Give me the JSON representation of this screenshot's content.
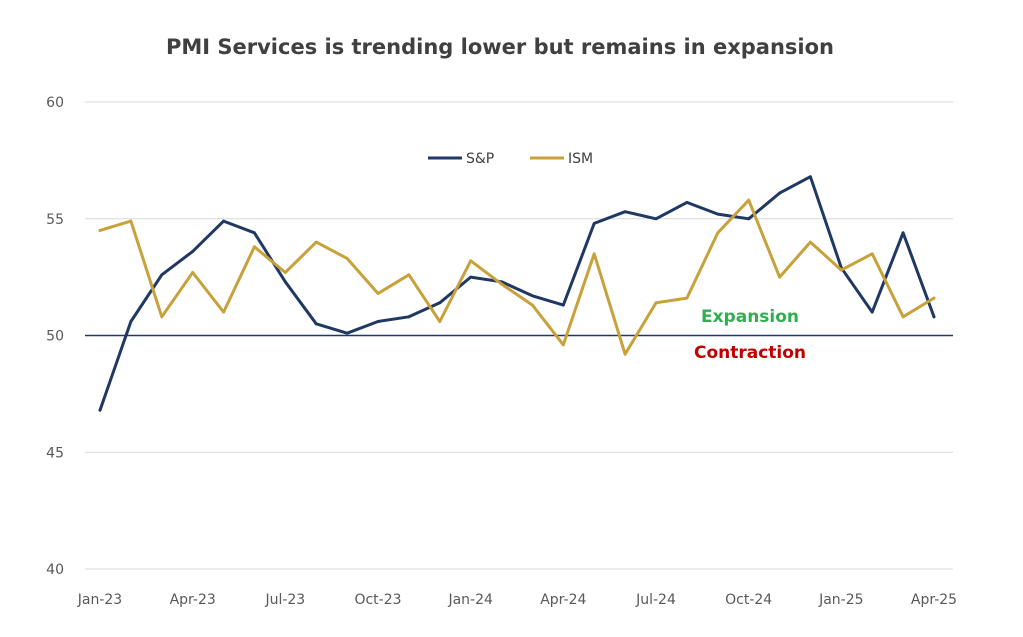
{
  "chart_data": {
    "type": "line",
    "title": "PMI Services is trending lower but remains in expansion",
    "xlabel": "",
    "ylabel": "",
    "ylim": [
      40,
      60
    ],
    "yticks": [
      40,
      45,
      50,
      55,
      60
    ],
    "x": [
      "Jan-23",
      "Feb-23",
      "Mar-23",
      "Apr-23",
      "May-23",
      "Jun-23",
      "Jul-23",
      "Aug-23",
      "Sep-23",
      "Oct-23",
      "Nov-23",
      "Dec-23",
      "Jan-24",
      "Feb-24",
      "Mar-24",
      "Apr-24",
      "May-24",
      "Jun-24",
      "Jul-24",
      "Aug-24",
      "Sep-24",
      "Oct-24",
      "Nov-24",
      "Dec-24",
      "Jan-25",
      "Feb-25",
      "Mar-25",
      "Apr-25"
    ],
    "xtick_labels": [
      "Jan-23",
      "Apr-23",
      "Jul-23",
      "Oct-23",
      "Jan-24",
      "Apr-24",
      "Jul-24",
      "Oct-24",
      "Jan-25",
      "Apr-25"
    ],
    "series": [
      {
        "name": "S&P",
        "color": "#1f3864",
        "values": [
          46.8,
          50.6,
          52.6,
          53.6,
          54.9,
          54.4,
          52.3,
          50.5,
          50.1,
          50.6,
          50.8,
          51.4,
          52.5,
          52.3,
          51.7,
          51.3,
          54.8,
          55.3,
          55.0,
          55.7,
          55.2,
          55.0,
          56.1,
          56.8,
          52.9,
          51.0,
          54.4,
          50.8
        ]
      },
      {
        "name": "ISM",
        "color": "#c9a13a",
        "values": [
          54.5,
          54.9,
          50.8,
          52.7,
          51.0,
          53.8,
          52.7,
          54.0,
          53.3,
          51.8,
          52.6,
          50.6,
          53.2,
          52.2,
          51.3,
          49.6,
          53.5,
          49.2,
          51.4,
          51.6,
          54.4,
          55.8,
          52.5,
          54.0,
          52.8,
          53.5,
          50.8,
          51.6
        ]
      }
    ],
    "reference_line": {
      "value": 50,
      "color": "#1f3864"
    },
    "annotations": [
      {
        "text": "Expansion",
        "color": "#2eb050"
      },
      {
        "text": "Contraction",
        "color": "#c00000"
      }
    ],
    "legend": {
      "placement": "top-center",
      "entries": [
        "S&P",
        "ISM"
      ]
    },
    "grid": true,
    "grid_color": "#d9d9d9"
  }
}
